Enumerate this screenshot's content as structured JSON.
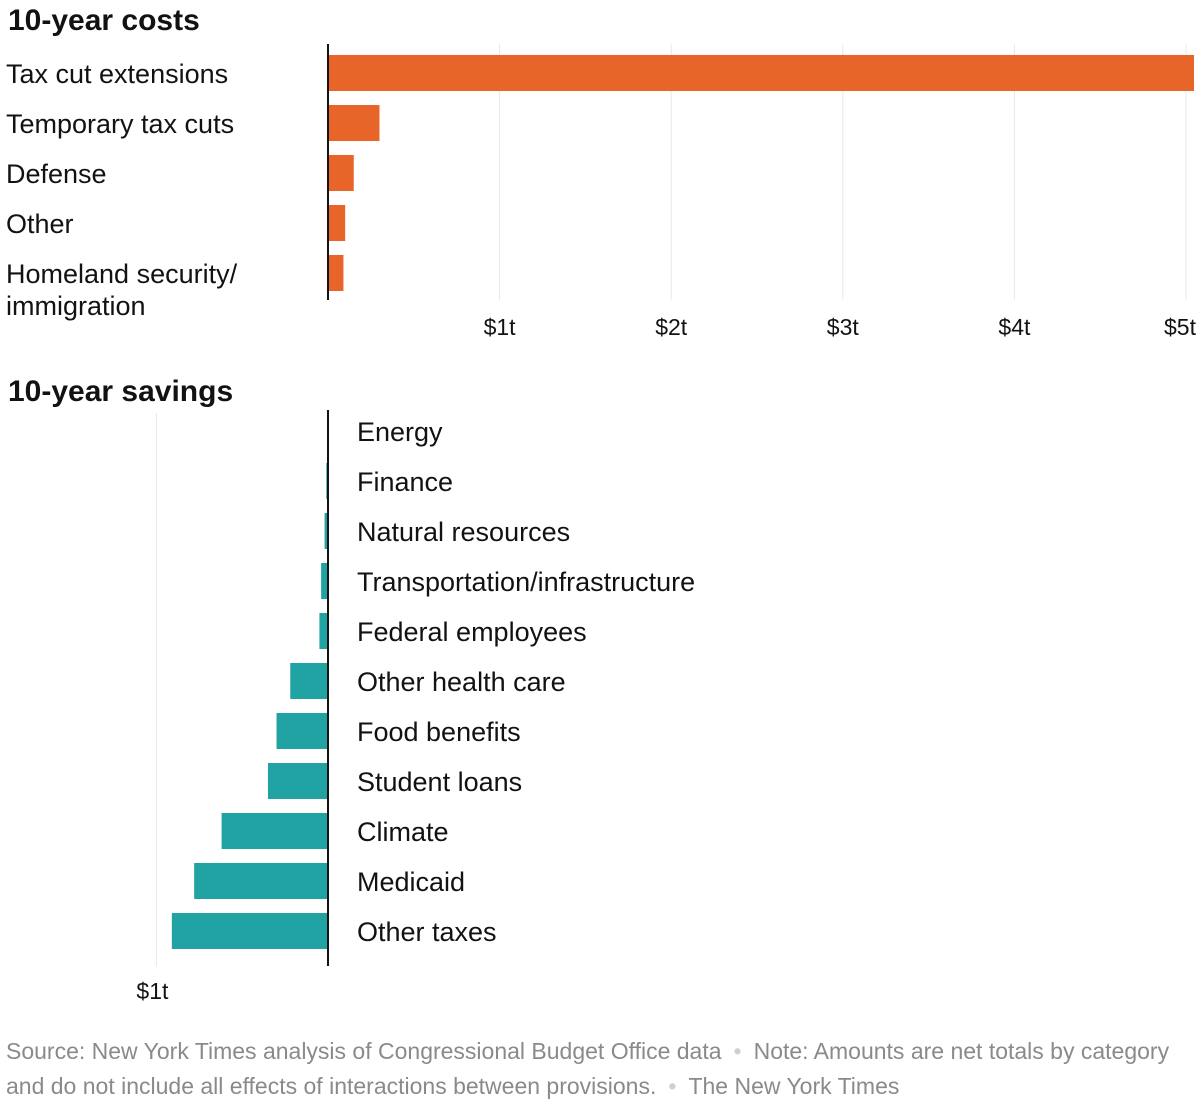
{
  "chart_data": [
    {
      "type": "bar",
      "orientation": "horizontal",
      "title": "10-year costs",
      "unit": "trillion dollars",
      "categories": [
        "Tax cut extensions",
        "Temporary tax cuts",
        "Defense",
        "Other",
        "Homeland security/ immigration"
      ],
      "values": [
        5.05,
        0.3,
        0.15,
        0.1,
        0.09
      ],
      "xlim": [
        0,
        5
      ],
      "ticks": [
        1,
        2,
        3,
        4,
        5
      ],
      "tick_labels": [
        "$1t",
        "$2t",
        "$3t",
        "$4t",
        "$5t"
      ],
      "color": "#e8652a"
    },
    {
      "type": "bar",
      "orientation": "horizontal",
      "title": "10-year savings",
      "unit": "trillion dollars",
      "categories": [
        "Energy",
        "Finance",
        "Natural resources",
        "Transportation/infrastructure",
        "Federal employees",
        "Other health care",
        "Food benefits",
        "Student loans",
        "Climate",
        "Medicaid",
        "Other taxes"
      ],
      "values": [
        -0.002,
        -0.01,
        -0.02,
        -0.04,
        -0.05,
        -0.22,
        -0.3,
        -0.35,
        -0.62,
        -0.78,
        -0.91
      ],
      "xlim": [
        -1,
        0
      ],
      "ticks": [
        -1
      ],
      "tick_labels": [
        "$1t"
      ],
      "color": "#21a3a3"
    }
  ],
  "footer": {
    "source": "Source: New York Times analysis of Congressional Budget Office data",
    "note": "Note: Amounts are net totals by category and do not include all effects of interactions between provisions.",
    "credit": "The New York Times"
  }
}
